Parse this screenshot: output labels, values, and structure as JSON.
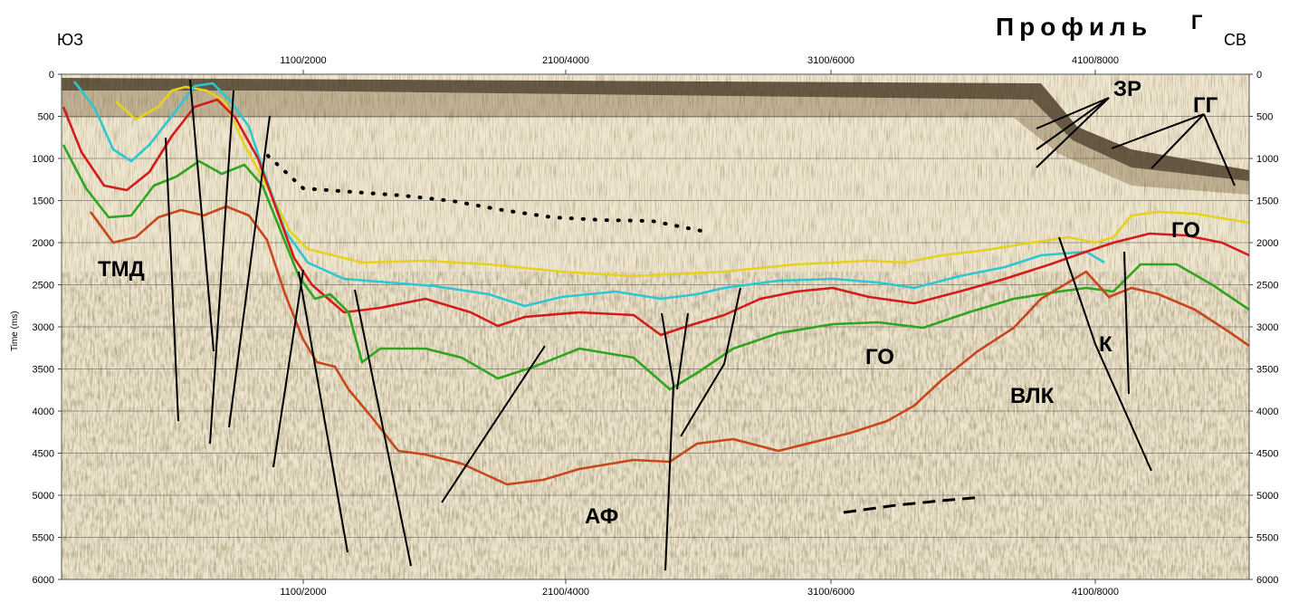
{
  "title": "Профиль",
  "title_suffix": "Г",
  "left_direction": "ЮЗ",
  "right_direction": "СВ",
  "y_axis_label": "Time (ms)",
  "x_ticks": [
    "1100/2000",
    "2100/4000",
    "3100/6000",
    "4100/8000"
  ],
  "y_ticks": [
    "0",
    "500",
    "1000",
    "1500",
    "2000",
    "2500",
    "3000",
    "3500",
    "4000",
    "4500",
    "5000",
    "5500",
    "6000"
  ],
  "labels": {
    "tmd": "ТМД",
    "go_center": "ГО",
    "go_right": "ГО",
    "af": "АФ",
    "vlk": "ВЛК",
    "k": "К",
    "zr": "ЗР",
    "gg": "ГГ"
  },
  "colors": {
    "horizon_yellow": "#e6d21e",
    "horizon_cyan": "#2cc7d0",
    "horizon_red": "#d41a1a",
    "horizon_green": "#2ea51e",
    "horizon_orange": "#c8461a",
    "fault": "#000000",
    "seismic_base": "#e8dcc2"
  }
}
